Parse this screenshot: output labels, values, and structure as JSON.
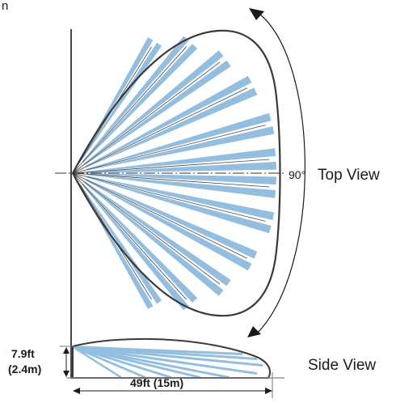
{
  "corner_text": "n",
  "top_view": {
    "label": "Top View",
    "angle_label": "90°"
  },
  "side_view": {
    "label": "Side View",
    "height_label_ft": "7.9ft",
    "height_label_m": "(2.4m)",
    "range_label": "49ft (15m)"
  },
  "colors": {
    "beam": "#93bedf",
    "outline": "#3a3a3a",
    "text": "#1a1a1a"
  }
}
